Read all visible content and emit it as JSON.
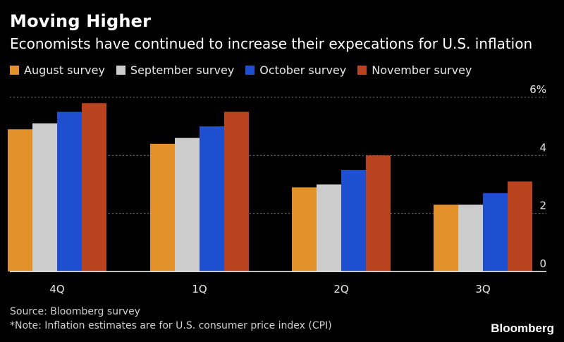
{
  "title": "Moving Higher",
  "subtitle": "Economists have continued to increase their expecations for U.S. inflation",
  "source": "Source: Bloomberg survey",
  "note": "*Note: Inflation estimates are for U.S. consumer price index (CPI)",
  "brand": "Bloomberg",
  "colors": {
    "background": "#000000",
    "grid": "#777777",
    "axis": "#ffffff"
  },
  "chart_data": {
    "type": "bar",
    "title": "Moving Higher",
    "subtitle": "Economists have continued to increase their expecations for U.S. inflation",
    "categories": [
      "4Q",
      "1Q",
      "2Q",
      "3Q"
    ],
    "series": [
      {
        "name": "August survey",
        "color": "#E3922B",
        "values": [
          4.9,
          4.4,
          2.9,
          2.3
        ]
      },
      {
        "name": "September survey",
        "color": "#CCCCCC",
        "values": [
          5.1,
          4.6,
          3.0,
          2.3
        ]
      },
      {
        "name": "October survey",
        "color": "#1F4FD1",
        "values": [
          5.5,
          5.0,
          3.5,
          2.7
        ]
      },
      {
        "name": "November survey",
        "color": "#B8431E",
        "values": [
          5.8,
          5.5,
          4.0,
          3.1
        ]
      }
    ],
    "yticks": [
      "6%",
      "4",
      "2",
      "0"
    ],
    "ylim": [
      0,
      6.4
    ],
    "grid": true,
    "legend": "top-left",
    "xlabel": "",
    "ylabel": ""
  }
}
